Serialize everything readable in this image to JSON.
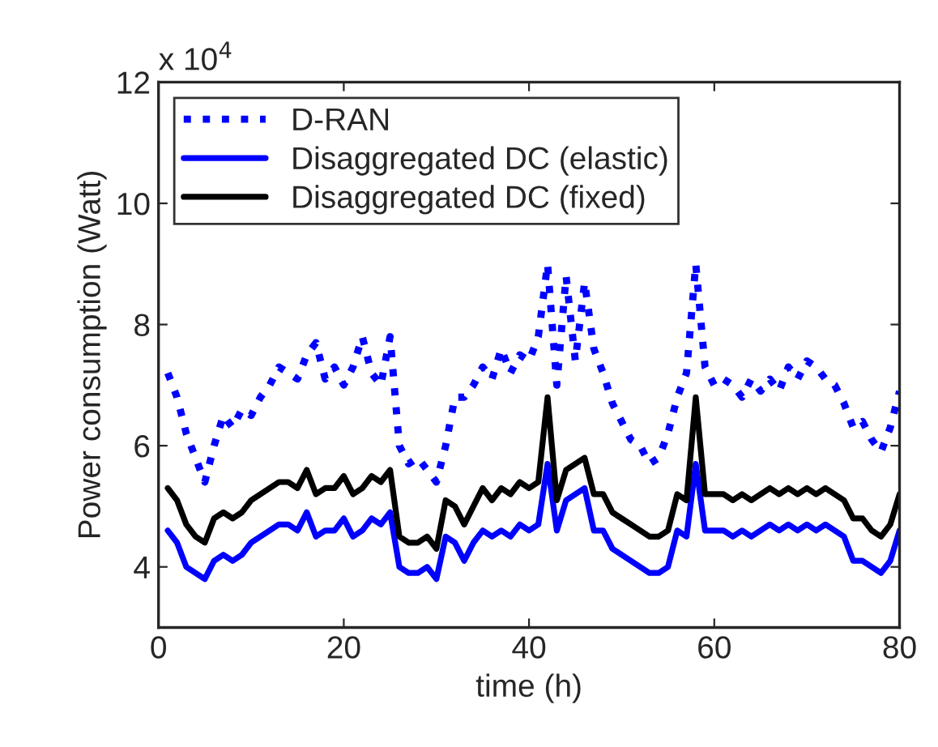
{
  "chart_data": {
    "type": "line",
    "xlabel": "time (h)",
    "ylabel": "Power consumption (Watt)",
    "annotations": [
      "x 10$^{4}$"
    ],
    "x": [
      1,
      2,
      3,
      4,
      5,
      6,
      7,
      8,
      9,
      10,
      11,
      12,
      13,
      14,
      15,
      16,
      17,
      18,
      19,
      20,
      21,
      22,
      23,
      24,
      25,
      26,
      27,
      28,
      29,
      30,
      31,
      32,
      33,
      34,
      35,
      36,
      37,
      38,
      39,
      40,
      41,
      42,
      43,
      44,
      45,
      46,
      47,
      48,
      49,
      50,
      51,
      52,
      53,
      54,
      55,
      56,
      57,
      58,
      59,
      60,
      61,
      62,
      63,
      64,
      65,
      66,
      67,
      68,
      69,
      70,
      71,
      72,
      73,
      74,
      75,
      76,
      77,
      78,
      79,
      80
    ],
    "series": [
      {
        "name": "D-RAN",
        "color": "#0000ff",
        "line_style": "dotted",
        "values": [
          7.2,
          6.8,
          6.2,
          5.8,
          5.4,
          6.0,
          6.5,
          6.3,
          6.6,
          6.5,
          6.8,
          7.0,
          7.3,
          7.2,
          7.1,
          7.5,
          7.7,
          7.1,
          7.3,
          7.0,
          7.3,
          7.8,
          7.2,
          7.0,
          7.8,
          6.0,
          5.7,
          5.8,
          5.6,
          5.4,
          6.0,
          6.8,
          6.8,
          7.0,
          7.3,
          7.1,
          7.6,
          7.2,
          7.5,
          7.4,
          7.8,
          9.0,
          7.0,
          8.8,
          7.4,
          8.7,
          7.6,
          7.2,
          6.7,
          6.4,
          6.1,
          6.0,
          5.7,
          5.8,
          6.2,
          6.8,
          7.2,
          9.0,
          7.3,
          7.0,
          7.1,
          7.0,
          6.8,
          7.1,
          6.9,
          7.1,
          6.9,
          7.3,
          7.1,
          7.4,
          7.3,
          7.1,
          7.0,
          6.7,
          6.3,
          6.4,
          6.1,
          5.9,
          6.3,
          6.9
        ]
      },
      {
        "name": "Disaggregated DC (elastic)",
        "color": "#0000ff",
        "line_style": "solid",
        "values": [
          4.6,
          4.4,
          4.0,
          3.9,
          3.8,
          4.1,
          4.2,
          4.1,
          4.2,
          4.4,
          4.5,
          4.6,
          4.7,
          4.7,
          4.6,
          4.9,
          4.5,
          4.6,
          4.6,
          4.8,
          4.5,
          4.6,
          4.8,
          4.7,
          4.9,
          4.0,
          3.9,
          3.9,
          4.0,
          3.8,
          4.5,
          4.4,
          4.1,
          4.4,
          4.6,
          4.5,
          4.6,
          4.5,
          4.7,
          4.6,
          4.7,
          5.7,
          4.6,
          5.1,
          5.2,
          5.3,
          4.6,
          4.6,
          4.3,
          4.2,
          4.1,
          4.0,
          3.9,
          3.9,
          4.0,
          4.6,
          4.5,
          5.7,
          4.6,
          4.6,
          4.6,
          4.5,
          4.6,
          4.5,
          4.6,
          4.7,
          4.6,
          4.7,
          4.6,
          4.7,
          4.6,
          4.7,
          4.6,
          4.5,
          4.1,
          4.1,
          4.0,
          3.9,
          4.1,
          4.6
        ]
      },
      {
        "name": "Disaggregated DC (fixed)",
        "color": "#000000",
        "line_style": "solid",
        "values": [
          5.3,
          5.1,
          4.7,
          4.5,
          4.4,
          4.8,
          4.9,
          4.8,
          4.9,
          5.1,
          5.2,
          5.3,
          5.4,
          5.4,
          5.3,
          5.6,
          5.2,
          5.3,
          5.3,
          5.5,
          5.2,
          5.3,
          5.5,
          5.4,
          5.6,
          4.5,
          4.4,
          4.4,
          4.5,
          4.3,
          5.1,
          5.0,
          4.7,
          5.0,
          5.3,
          5.1,
          5.3,
          5.2,
          5.4,
          5.3,
          5.4,
          6.8,
          5.1,
          5.6,
          5.7,
          5.8,
          5.2,
          5.2,
          4.9,
          4.8,
          4.7,
          4.6,
          4.5,
          4.5,
          4.6,
          5.2,
          5.1,
          6.8,
          5.2,
          5.2,
          5.2,
          5.1,
          5.2,
          5.1,
          5.2,
          5.3,
          5.2,
          5.3,
          5.2,
          5.3,
          5.2,
          5.3,
          5.2,
          5.1,
          4.8,
          4.8,
          4.6,
          4.5,
          4.7,
          5.2
        ]
      }
    ],
    "xlim": [
      0,
      80
    ],
    "xticks": [
      0,
      20,
      40,
      60,
      80
    ],
    "ylim": [
      3,
      12
    ],
    "yticks": [
      4,
      6,
      8,
      10,
      12
    ],
    "grid": false,
    "legend": "top left",
    "marker": "none"
  }
}
